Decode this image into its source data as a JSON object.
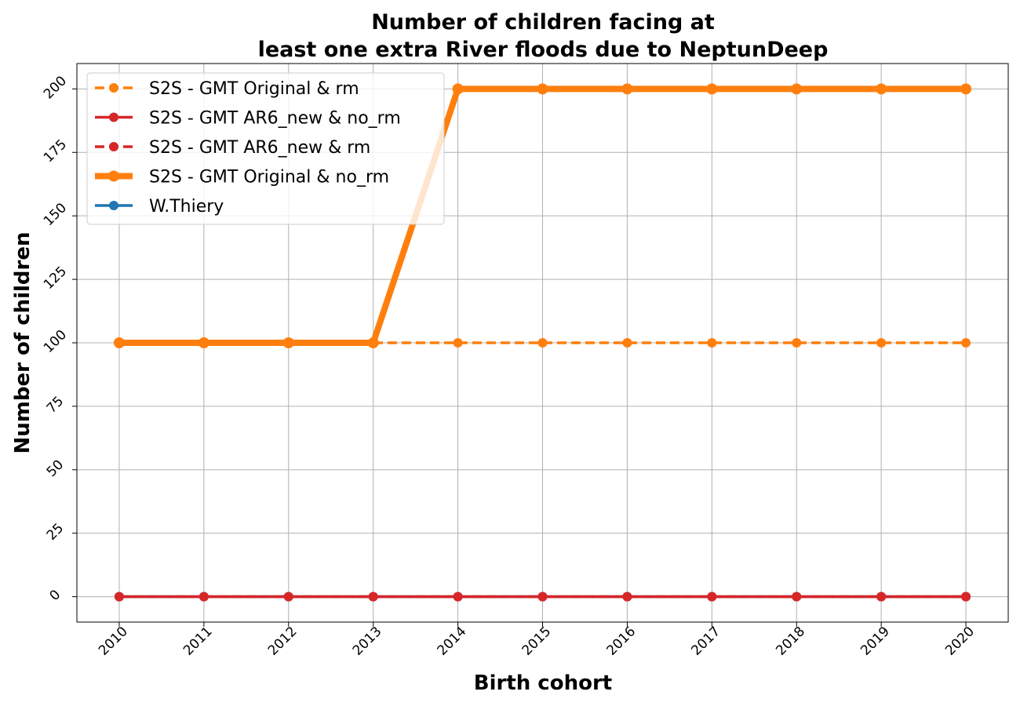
{
  "chart_data": {
    "type": "line",
    "title_lines": [
      "Number of children facing at",
      "least one extra River floods due to NeptunDeep"
    ],
    "xlabel": "Birth cohort",
    "ylabel": "Number of children",
    "x": [
      2010,
      2011,
      2012,
      2013,
      2014,
      2015,
      2016,
      2017,
      2018,
      2019,
      2020
    ],
    "xticks": [
      "2010",
      "2011",
      "2012",
      "2013",
      "2014",
      "2015",
      "2016",
      "2017",
      "2018",
      "2019",
      "2020"
    ],
    "yticks": [
      0,
      25,
      50,
      75,
      100,
      125,
      150,
      175,
      200
    ],
    "ylim": [
      -10,
      210
    ],
    "xlim": [
      2009.5,
      2020.5
    ],
    "grid": true,
    "legend_position": "upper-left",
    "series": [
      {
        "name": "W.Thiery",
        "color": "#1f77b4",
        "style": "solid",
        "width": "normal",
        "values": [
          0,
          0,
          0,
          0,
          0,
          0,
          0,
          0,
          0,
          0,
          0
        ]
      },
      {
        "name": "S2S - GMT Original & no_rm",
        "color": "#ff7f0e",
        "style": "solid",
        "width": "thick",
        "values": [
          100,
          100,
          100,
          100,
          200,
          200,
          200,
          200,
          200,
          200,
          200
        ]
      },
      {
        "name": "S2S - GMT Original & rm",
        "color": "#ff7f0e",
        "style": "dashed",
        "width": "normal",
        "values": [
          100,
          100,
          100,
          100,
          100,
          100,
          100,
          100,
          100,
          100,
          100
        ]
      },
      {
        "name": "S2S - GMT AR6_new & no_rm",
        "color": "#d62728",
        "style": "solid",
        "width": "normal",
        "values": [
          0,
          0,
          0,
          0,
          0,
          0,
          0,
          0,
          0,
          0,
          0
        ]
      },
      {
        "name": "S2S - GMT AR6_new & rm",
        "color": "#d62728",
        "style": "dashed",
        "width": "normal",
        "values": [
          0,
          0,
          0,
          0,
          0,
          0,
          0,
          0,
          0,
          0,
          0
        ]
      }
    ],
    "legend_order": [
      "S2S - GMT Original & rm",
      "S2S - GMT AR6_new & no_rm",
      "S2S - GMT AR6_new & rm",
      "S2S - GMT Original & no_rm",
      "W.Thiery"
    ]
  }
}
